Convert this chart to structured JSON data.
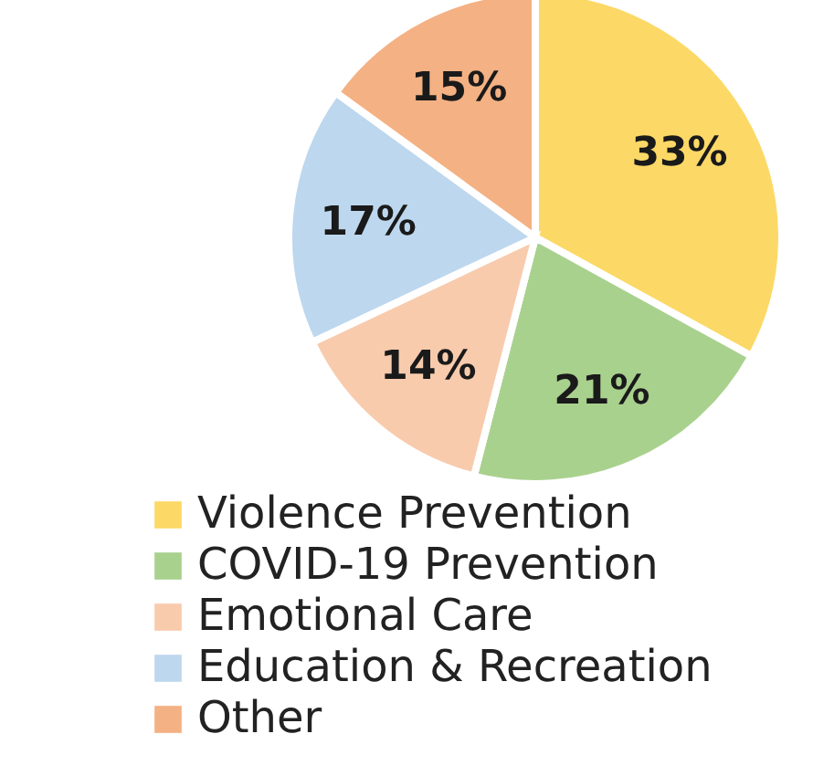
{
  "chart_data": {
    "type": "pie",
    "categories": [
      "Violence Prevention",
      "COVID-19 Prevention",
      "Emotional Care",
      "Education & Recreation",
      "Other"
    ],
    "values": [
      33,
      21,
      14,
      17,
      15
    ],
    "colors": [
      "#fcd966",
      "#a9d18e",
      "#f8cbad",
      "#bdd7ee",
      "#f4b183"
    ],
    "value_labels": [
      "33%",
      "21%",
      "14%",
      "17%",
      "15%"
    ],
    "legend": "bottom"
  }
}
